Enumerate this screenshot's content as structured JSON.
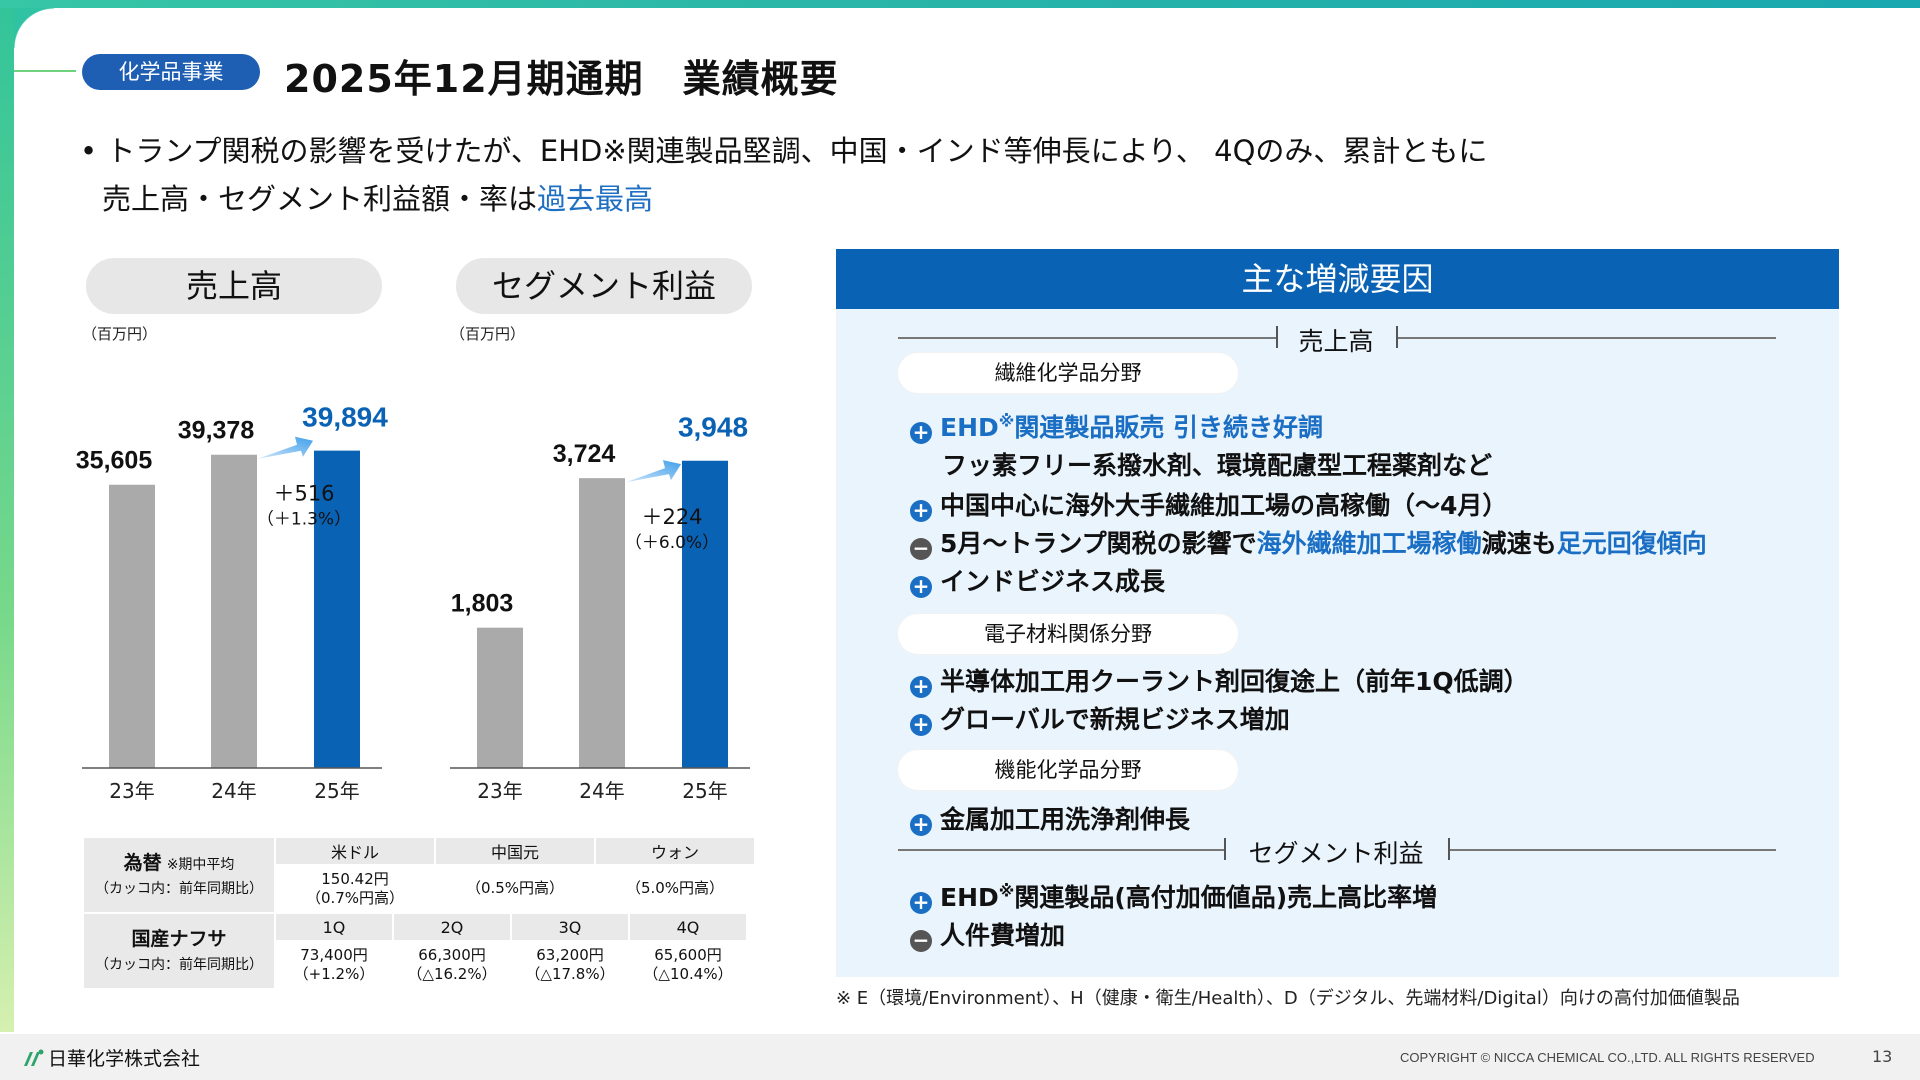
{
  "header": {
    "tag": "化学品事業",
    "title": "2025年12月期通期　業績概要"
  },
  "lead": {
    "line1": "• トランプ関税の影響を受けたが、EHD※関連製品堅調、中国・インド等伸長により、 4Qのみ、累計ともに",
    "line2_prefix": "売上高・セグメント利益額・率は",
    "line2_highlight": "過去最高"
  },
  "charts_labels": {
    "sales_title": "売上高",
    "profit_title": "セグメント利益",
    "unit": "（百万円）"
  },
  "chart_data": [
    {
      "type": "bar",
      "title": "売上高",
      "unit": "（百万円）",
      "categories": [
        "23年",
        "24年",
        "25年"
      ],
      "values": [
        35605,
        39378,
        39894
      ],
      "value_labels": [
        "35,605",
        "39,378",
        "39,894"
      ],
      "delta": "＋516",
      "delta_pct": "（＋1.3%）",
      "ylim": [
        0,
        45000
      ],
      "colors": [
        "#aaaaaa",
        "#aaaaaa",
        "#0a62b4"
      ]
    },
    {
      "type": "bar",
      "title": "セグメント利益",
      "unit": "（百万円）",
      "categories": [
        "23年",
        "24年",
        "25年"
      ],
      "values": [
        1803,
        3724,
        3948
      ],
      "value_labels": [
        "1,803",
        "3,724",
        "3,948"
      ],
      "delta": "＋224",
      "delta_pct": "（＋6.0%）",
      "ylim": [
        0,
        4600
      ],
      "colors": [
        "#aaaaaa",
        "#aaaaaa",
        "#0a62b4"
      ]
    }
  ],
  "fx_table": {
    "label_main": "為替",
    "label_note": "※期中平均",
    "label_sub": "（カッコ内：前年同期比）",
    "headers": [
      "米ドル",
      "中国元",
      "ウォン"
    ],
    "values": [
      "150.42円",
      "",
      ""
    ],
    "changes": [
      "（0.7%円高）",
      "（0.5%円高）",
      "（5.0%円高）"
    ]
  },
  "naphtha_table": {
    "label_main": "国産ナフサ",
    "label_sub": "（カッコ内：前年同期比）",
    "headers": [
      "1Q",
      "2Q",
      "3Q",
      "4Q"
    ],
    "values": [
      "73,400円",
      "66,300円",
      "63,200円",
      "65,600円"
    ],
    "changes": [
      "（+1.2%）",
      "（△16.2%）",
      "（△17.8%）",
      "（△10.4%）"
    ]
  },
  "panel": {
    "title": "主な増減要因",
    "section_sales": "売上高",
    "section_profit": "セグメント利益",
    "categories": [
      "繊維化学品分野",
      "電子材料関係分野",
      "機能化学品分野"
    ],
    "items": {
      "fiber1_a": "EHD",
      "fiber1_sup": "※",
      "fiber1_b": "関連製品販売 引き続き好調",
      "fiber1_sub": "フッ素フリー系撥水剤、環境配慮型工程薬剤など",
      "fiber2": "中国中心に海外大手繊維加工場の高稼働（～4月）",
      "fiber3_a": "5月～トランプ関税の影響で",
      "fiber3_b": "海外繊維加工場稼働",
      "fiber3_c": "減速も",
      "fiber3_d": "足元回復傾向",
      "fiber4": "インドビジネス成長",
      "elec1": "半導体加工用クーラント剤回復途上（前年1Q低調）",
      "elec2": "グローバルで新規ビジネス増加",
      "func1": "金属加工用洗浄剤伸長",
      "profit1_a": "EHD",
      "profit1_sup": "※",
      "profit1_b": "関連製品(高付加価値品)売上高比率増",
      "profit2": "人件費増加"
    },
    "footnote": "※ E（環境/Environment）、H（健康・衛生/Health）、D（デジタル、先端材料/Digital）向けの高付加価値製品"
  },
  "footer": {
    "company": "日華化学株式会社",
    "copyright": "COPYRIGHT © NICCA CHEMICAL CO.,LTD. ALL RIGHTS RESERVED",
    "page": "13"
  },
  "colors": {
    "accent_blue": "#0a62b4",
    "highlight_blue": "#1a6ec4",
    "bar_gray": "#aaaaaa",
    "panel_bg": "#eaf4fc"
  }
}
